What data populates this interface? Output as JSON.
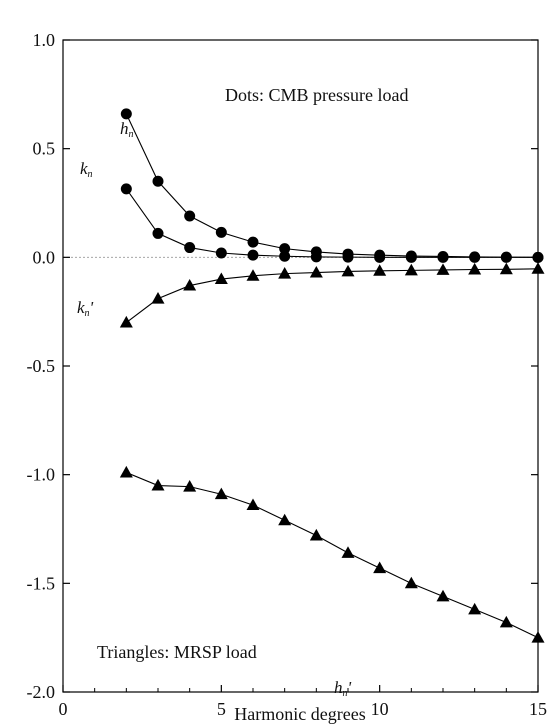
{
  "chart_data": {
    "type": "line",
    "xlabel": "Harmonic degrees",
    "ylabel": "",
    "xlim": [
      0,
      15
    ],
    "ylim": [
      -2.0,
      1.0
    ],
    "x_ticks": [
      0,
      5,
      10,
      15
    ],
    "x_tick_labels": [
      "0",
      "5",
      "10",
      "15"
    ],
    "y_ticks": [
      1.0,
      0.5,
      0.0,
      -0.5,
      -1.0,
      -1.5,
      -2.0
    ],
    "y_tick_labels": [
      "1.0",
      "0.5",
      "0.0",
      "-0.5",
      "-1.0",
      "-1.5",
      "-2.0"
    ],
    "grid": false,
    "zero_line": true,
    "annotations": [
      "Dots: CMB pressure load",
      "Triangles: MRSP load"
    ],
    "x": [
      2,
      3,
      4,
      5,
      6,
      7,
      8,
      9,
      10,
      11,
      12,
      13,
      14,
      15
    ],
    "series": [
      {
        "name": "h",
        "subscript": "n",
        "prime": "",
        "marker": "circle",
        "values": [
          0.66,
          0.35,
          0.19,
          0.115,
          0.07,
          0.04,
          0.025,
          0.015,
          0.01,
          0.006,
          0.004,
          0.002,
          0.001,
          0.0
        ]
      },
      {
        "name": "k",
        "subscript": "n",
        "prime": "",
        "marker": "circle",
        "values": [
          0.315,
          0.11,
          0.045,
          0.02,
          0.01,
          0.005,
          0.002,
          0.001,
          0.0,
          0.0,
          0.0,
          0.0,
          0.0,
          0.0
        ]
      },
      {
        "name": "k",
        "subscript": "n",
        "prime": "'",
        "marker": "triangle",
        "values": [
          -0.3,
          -0.19,
          -0.13,
          -0.1,
          -0.085,
          -0.075,
          -0.07,
          -0.065,
          -0.062,
          -0.06,
          -0.058,
          -0.056,
          -0.055,
          -0.053
        ]
      },
      {
        "name": "h",
        "subscript": "n",
        "prime": "'",
        "marker": "triangle",
        "values": [
          -0.99,
          -1.05,
          -1.055,
          -1.09,
          -1.14,
          -1.21,
          -1.28,
          -1.36,
          -1.43,
          -1.5,
          -1.56,
          -1.62,
          -1.68,
          -1.75
        ]
      }
    ],
    "colors": {
      "line": "#000000",
      "marker": "#000000",
      "zero_line": "#999999"
    }
  }
}
